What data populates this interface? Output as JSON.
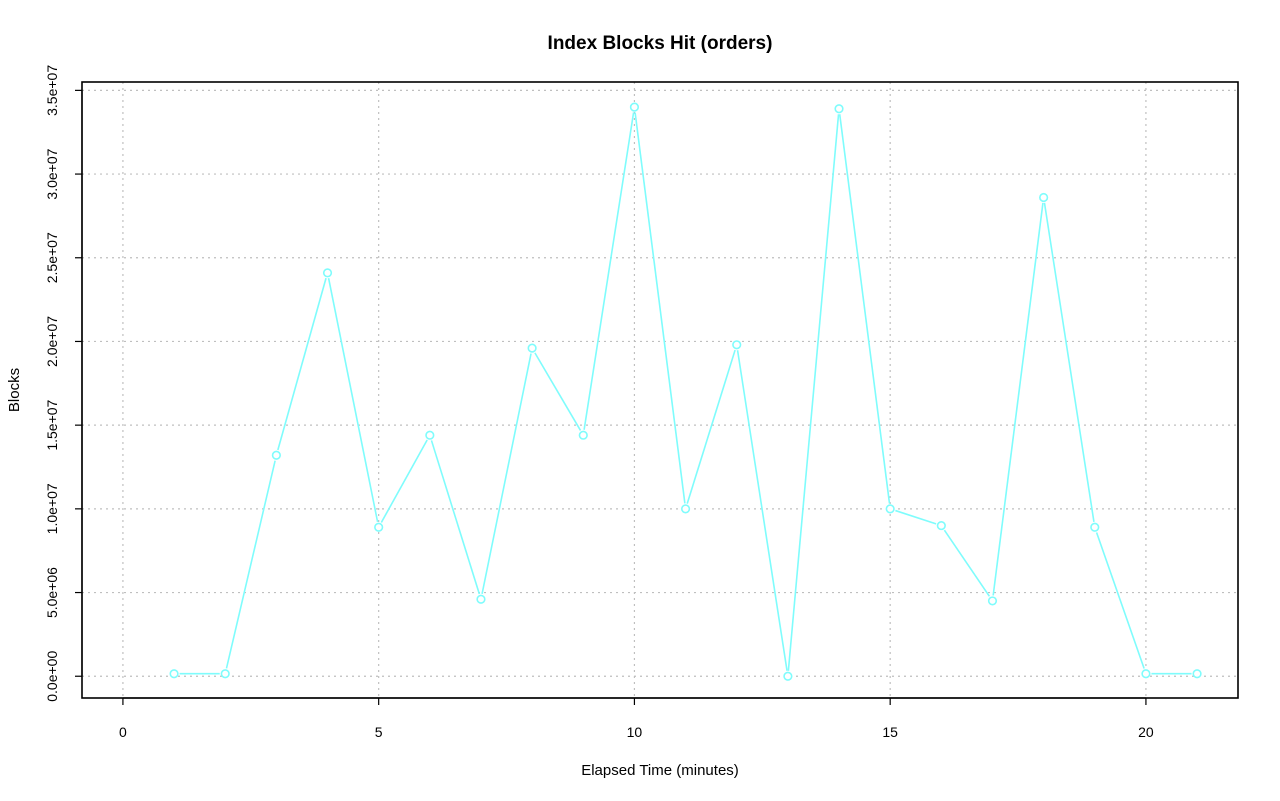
{
  "chart_data": {
    "type": "line",
    "title": "Index Blocks Hit (orders)",
    "xlabel": "Elapsed Time (minutes)",
    "ylabel": "Blocks",
    "xlim": [
      -0.8,
      21.8
    ],
    "ylim": [
      -1300000,
      35500000
    ],
    "x_ticks": [
      0,
      5,
      10,
      15,
      20
    ],
    "x_tick_labels": [
      "0",
      "5",
      "10",
      "15",
      "20"
    ],
    "y_ticks": [
      0,
      5000000,
      10000000,
      15000000,
      20000000,
      25000000,
      30000000,
      35000000
    ],
    "y_tick_labels": [
      "0.0e+00",
      "5.0e+06",
      "1.0e+07",
      "1.5e+07",
      "2.0e+07",
      "2.5e+07",
      "3.0e+07",
      "3.5e+07"
    ],
    "grid": true,
    "series_color": "#7ffcfc",
    "x": [
      1,
      2,
      3,
      4,
      5,
      6,
      7,
      8,
      9,
      10,
      11,
      12,
      13,
      14,
      15,
      16,
      17,
      18,
      19,
      20,
      21
    ],
    "values": [
      150000,
      150000,
      13200000,
      24100000,
      8900000,
      14400000,
      4600000,
      19600000,
      14400000,
      34000000,
      10000000,
      19800000,
      0,
      33900000,
      10000000,
      9000000,
      4500000,
      28600000,
      8900000,
      150000,
      150000
    ]
  }
}
